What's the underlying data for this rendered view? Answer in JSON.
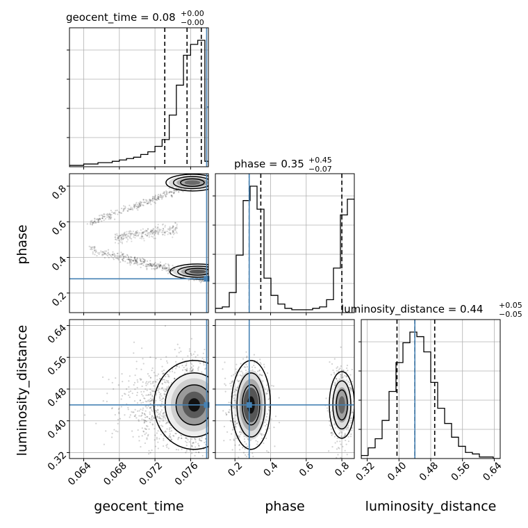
{
  "chart_data": {
    "type": "corner",
    "parameters": [
      "geocent_time",
      "phase",
      "luminosity_distance"
    ],
    "titles": [
      {
        "param": "geocent_time",
        "label": "geocent_time = 0.08",
        "sup": "+0.00",
        "sub": "−0.00"
      },
      {
        "param": "phase",
        "label": "phase = 0.35",
        "sup": "+0.45",
        "sub": "−0.07"
      },
      {
        "param": "luminosity_distance",
        "label": "luminosity_distance = 0.44",
        "sup": "+0.05",
        "sub": "−0.05"
      }
    ],
    "axes": {
      "geocent_time": {
        "range": [
          0.0624,
          0.078
        ],
        "ticks": [
          0.064,
          0.068,
          0.072,
          0.076
        ],
        "tick_labels": [
          "0.064",
          "0.068",
          "0.072",
          "0.076"
        ]
      },
      "phase": {
        "range": [
          0.09,
          0.87
        ],
        "ticks": [
          0.2,
          0.4,
          0.6,
          0.8
        ],
        "tick_labels": [
          "0.2",
          "0.4",
          "0.6",
          "0.8"
        ]
      },
      "luminosity_distance": {
        "range": [
          0.305,
          0.655
        ],
        "ticks": [
          0.32,
          0.4,
          0.48,
          0.56,
          0.64
        ],
        "tick_labels": [
          "0.32",
          "0.40",
          "0.48",
          "0.56",
          "0.64"
        ]
      }
    },
    "truths": {
      "geocent_time": 0.0778,
      "phase": 0.28,
      "luminosity_distance": 0.44
    },
    "quantiles": {
      "geocent_time": [
        0.0731,
        0.0756,
        0.0772
      ],
      "phase": [
        0.28,
        0.345,
        0.8
      ],
      "luminosity_distance": [
        0.395,
        0.44,
        0.49
      ]
    },
    "histograms": {
      "geocent_time": {
        "edges": [
          0.0624,
          0.0632,
          0.064,
          0.0648,
          0.0656,
          0.0664,
          0.0672,
          0.068,
          0.0688,
          0.0696,
          0.0704,
          0.0712,
          0.072,
          0.0728,
          0.0736,
          0.0744,
          0.0752,
          0.076,
          0.0768,
          0.0776,
          0.078
        ],
        "counts": [
          1,
          1,
          2,
          2,
          3,
          3,
          4,
          5,
          6,
          7,
          9,
          11,
          15,
          20,
          38,
          60,
          82,
          90,
          93,
          4
        ]
      },
      "phase": {
        "edges": [
          0.09,
          0.129,
          0.168,
          0.207,
          0.246,
          0.285,
          0.324,
          0.363,
          0.402,
          0.441,
          0.48,
          0.519,
          0.558,
          0.597,
          0.636,
          0.675,
          0.714,
          0.753,
          0.792,
          0.831,
          0.87
        ],
        "counts": [
          3,
          4,
          14,
          40,
          78,
          88,
          72,
          24,
          12,
          6,
          3,
          2,
          2,
          2,
          3,
          4,
          9,
          31,
          68,
          79
        ]
      },
      "luminosity_distance": {
        "edges": [
          0.305,
          0.3225,
          0.34,
          0.3575,
          0.375,
          0.3925,
          0.41,
          0.4275,
          0.445,
          0.4625,
          0.48,
          0.4975,
          0.515,
          0.5325,
          0.55,
          0.5675,
          0.585,
          0.6025,
          0.62,
          0.6375,
          0.655
        ],
        "counts": [
          2,
          7,
          13,
          25,
          44,
          63,
          76,
          83,
          80,
          70,
          50,
          33,
          23,
          14,
          8,
          4,
          3,
          1,
          1,
          0
        ]
      }
    },
    "grid": true,
    "truth_color": "#4682b4"
  }
}
